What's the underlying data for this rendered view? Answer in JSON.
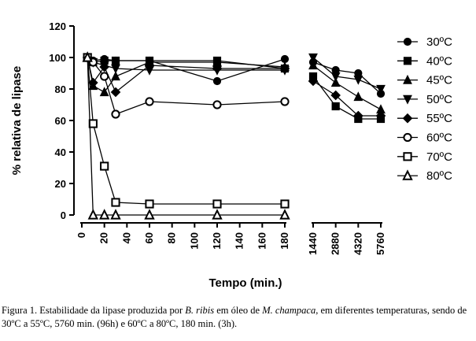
{
  "chart_data": {
    "type": "line",
    "xlabel": "Tempo (min.)",
    "ylabel": "% relativa de lipase",
    "ylim": [
      0,
      120
    ],
    "yticks": [
      0,
      20,
      40,
      60,
      80,
      100,
      120
    ],
    "x_segments": [
      {
        "range": [
          0,
          180
        ],
        "ticks": [
          0,
          20,
          40,
          60,
          80,
          100,
          120,
          140,
          160,
          180
        ]
      },
      {
        "range": [
          1440,
          5760
        ],
        "ticks": [
          1440,
          2880,
          4320,
          5760
        ]
      }
    ],
    "legend_position": "right",
    "grid": false,
    "series": [
      {
        "name": "30ºC",
        "marker": "circle-filled",
        "x": [
          5,
          10,
          20,
          30,
          60,
          120,
          180,
          1440,
          2880,
          4320,
          5760
        ],
        "y": [
          100,
          98,
          99,
          98,
          98,
          85,
          99,
          97,
          92,
          90,
          77
        ]
      },
      {
        "name": "40ºC",
        "marker": "square-filled",
        "x": [
          5,
          10,
          20,
          30,
          60,
          120,
          180,
          1440,
          2880,
          4320,
          5760
        ],
        "y": [
          100,
          97,
          98,
          98,
          98,
          98,
          93,
          88,
          69,
          61,
          61
        ]
      },
      {
        "name": "45ºC",
        "marker": "triangle-up-filled",
        "x": [
          5,
          10,
          20,
          30,
          60,
          120,
          180,
          1440,
          2880,
          4320,
          5760
        ],
        "y": [
          100,
          82,
          78,
          88,
          97,
          97,
          94,
          95,
          84,
          75,
          67
        ]
      },
      {
        "name": "50ºC",
        "marker": "triangle-down-filled",
        "x": [
          5,
          10,
          20,
          30,
          60,
          120,
          180,
          1440,
          2880,
          4320,
          5760
        ],
        "y": [
          100,
          97,
          95,
          93,
          92,
          92,
          92,
          100,
          88,
          86,
          80
        ]
      },
      {
        "name": "55ºC",
        "marker": "diamond-filled",
        "x": [
          5,
          10,
          20,
          30,
          60,
          120,
          180,
          1440,
          2880,
          4320,
          5760
        ],
        "y": [
          100,
          84,
          94,
          78,
          95,
          93,
          93,
          85,
          76,
          63,
          63
        ]
      },
      {
        "name": "60ºC",
        "marker": "circle-open",
        "x": [
          5,
          10,
          20,
          30,
          60,
          120,
          180
        ],
        "y": [
          100,
          97,
          88,
          64,
          72,
          70,
          72
        ]
      },
      {
        "name": "70ºC",
        "marker": "square-open",
        "x": [
          5,
          10,
          20,
          30,
          60,
          120,
          180
        ],
        "y": [
          100,
          58,
          31,
          8,
          7,
          7,
          7
        ]
      },
      {
        "name": "80ºC",
        "marker": "triangle-up-open",
        "x": [
          5,
          10,
          20,
          30,
          60,
          120,
          180
        ],
        "y": [
          100,
          0,
          0,
          0,
          0,
          0,
          0
        ]
      }
    ]
  },
  "caption": {
    "prefix": "Figura 1. Estabilidade da lipase produzida por ",
    "species1": "B. ribis",
    "middle": " em óleo de ",
    "species2": "M. champaca",
    "suffix": ", em diferentes temperaturas, sendo de 30ºC a 55ºC, 5760 min. (96h) e 60ºC a 80ºC, 180 min. (3h)."
  }
}
